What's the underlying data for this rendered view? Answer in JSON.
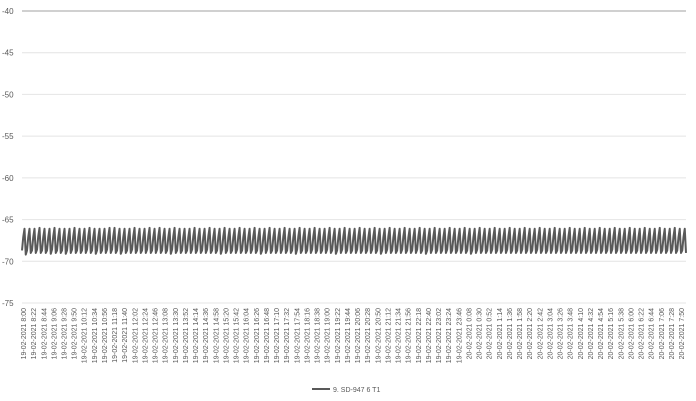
{
  "chart_data": {
    "type": "line",
    "title": "",
    "xlabel": "",
    "ylabel": "",
    "ylim": [
      -75,
      -40
    ],
    "yticks": [
      -40,
      -45,
      -50,
      -55,
      -60,
      -65,
      -70,
      -75
    ],
    "ytick_labels": [
      "-40",
      "-45",
      "-50",
      "-55",
      "-60",
      "-65",
      "-70",
      "-75"
    ],
    "grid": "horizontal",
    "legend_position": "bottom",
    "x_tick_labels": [
      "19-02-2021 8:00",
      "19-02-2021 8:22",
      "19-02-2021 8:44",
      "19-02-2021 9:06",
      "19-02-2021 9:28",
      "19-02-2021 9:50",
      "19-02-2021 10:12",
      "19-02-2021 10:34",
      "19-02-2021 10:56",
      "19-02-2021 11:18",
      "19-02-2021 11:40",
      "19-02-2021 12:02",
      "19-02-2021 12:24",
      "19-02-2021 12:46",
      "19-02-2021 13:08",
      "19-02-2021 13:30",
      "19-02-2021 13:52",
      "19-02-2021 14:14",
      "19-02-2021 14:36",
      "19-02-2021 14:58",
      "19-02-2021 15:20",
      "19-02-2021 15:42",
      "19-02-2021 16:04",
      "19-02-2021 16:26",
      "19-02-2021 16:48",
      "19-02-2021 17:10",
      "19-02-2021 17:32",
      "19-02-2021 17:54",
      "19-02-2021 18:16",
      "19-02-2021 18:38",
      "19-02-2021 19:00",
      "19-02-2021 19:22",
      "19-02-2021 19:44",
      "19-02-2021 20:06",
      "19-02-2021 20:28",
      "19-02-2021 20:50",
      "19-02-2021 21:12",
      "19-02-2021 21:34",
      "19-02-2021 21:56",
      "19-02-2021 22:18",
      "19-02-2021 22:40",
      "19-02-2021 23:02",
      "19-02-2021 23:24",
      "19-02-2021 23:46",
      "20-02-2021 0:08",
      "20-02-2021 0:30",
      "20-02-2021 0:52",
      "20-02-2021 1:14",
      "20-02-2021 1:36",
      "20-02-2021 1:58",
      "20-02-2021 2:20",
      "20-02-2021 2:42",
      "20-02-2021 3:04",
      "20-02-2021 3:26",
      "20-02-2021 3:48",
      "20-02-2021 4:10",
      "20-02-2021 4:32",
      "20-02-2021 4:54",
      "20-02-2021 5:16",
      "20-02-2021 5:38",
      "20-02-2021 6:00",
      "20-02-2021 6:22",
      "20-02-2021 6:44",
      "20-02-2021 7:06",
      "20-02-2021 7:28",
      "20-02-2021 7:50"
    ],
    "series": [
      {
        "name": "9. SD-947 6 T1",
        "color": "#595959",
        "values": [
          -68.7,
          -67.1,
          -66.1,
          -69.2,
          -68.7,
          -67.1,
          -66.1,
          -69.0,
          -68.7,
          -67.1,
          -66.1,
          -69.0,
          -68.6,
          -67.0,
          -66.0,
          -69.0,
          -68.7,
          -67.1,
          -66.1,
          -69.0,
          -68.7,
          -67.1,
          -66.1,
          -69.1,
          -68.6,
          -67.0,
          -66.0,
          -69.0,
          -68.7,
          -67.1,
          -66.1,
          -69.0,
          -68.7,
          -67.1,
          -66.1,
          -69.1,
          -68.7,
          -67.1,
          -66.1,
          -69.0,
          -68.6,
          -67.0,
          -66.0,
          -69.0,
          -68.7,
          -67.1,
          -66.1,
          -69.0,
          -68.7,
          -67.1,
          -66.1,
          -69.0,
          -68.6,
          -67.0,
          -66.0,
          -69.0,
          -68.7,
          -67.1,
          -66.1,
          -69.1,
          -68.7,
          -67.1,
          -66.1,
          -69.0,
          -68.7,
          -67.1,
          -66.1,
          -69.0,
          -68.6,
          -67.0,
          -66.0,
          -69.0,
          -68.6,
          -67.0,
          -66.0,
          -69.0,
          -68.7,
          -67.1,
          -66.1,
          -69.1,
          -68.7,
          -67.1,
          -66.1,
          -69.0,
          -68.7,
          -67.1,
          -66.1,
          -69.0,
          -68.6,
          -67.0,
          -66.0,
          -69.0,
          -68.7,
          -67.1,
          -66.1,
          -69.0,
          -68.7,
          -67.1,
          -66.1,
          -69.0,
          -68.6,
          -67.0,
          -66.0,
          -69.0,
          -68.7,
          -67.1,
          -66.1,
          -69.0,
          -68.6,
          -67.0,
          -66.0,
          -69.0,
          -68.7,
          -67.1,
          -66.1,
          -69.0,
          -68.7,
          -67.1,
          -66.1,
          -69.1,
          -68.6,
          -67.0,
          -66.0,
          -69.0,
          -68.7,
          -67.1,
          -66.1,
          -69.0,
          -68.7,
          -67.1,
          -66.1,
          -69.0,
          -68.7,
          -67.1,
          -66.1,
          -69.0,
          -68.6,
          -67.0,
          -66.0,
          -69.0,
          -68.7,
          -67.1,
          -66.1,
          -69.0,
          -68.7,
          -67.1,
          -66.1,
          -69.0,
          -68.6,
          -67.0,
          -66.0,
          -69.0,
          -68.7,
          -67.1,
          -66.1,
          -69.0,
          -68.7,
          -67.1,
          -66.1,
          -69.1,
          -68.6,
          -67.0,
          -66.0,
          -69.0,
          -68.7,
          -67.1,
          -66.1,
          -69.0,
          -68.7,
          -67.1,
          -66.1,
          -69.0,
          -68.6,
          -67.0,
          -66.0,
          -69.0,
          -68.7,
          -67.1,
          -66.1,
          -69.0,
          -68.7,
          -67.1,
          -66.1,
          -69.0,
          -68.6,
          -67.0,
          -66.0,
          -69.0,
          -68.7,
          -67.1,
          -66.1,
          -69.1,
          -68.7,
          -67.1,
          -66.1,
          -69.0,
          -68.6,
          -67.0,
          -66.0,
          -69.0,
          -68.7,
          -67.1,
          -66.1,
          -69.0,
          -68.7,
          -67.1,
          -66.1,
          -69.0,
          -68.6,
          -67.0,
          -66.0,
          -69.0,
          -68.7,
          -67.1,
          -66.1,
          -69.0,
          -68.7,
          -67.1,
          -66.1,
          -69.1,
          -68.6,
          -67.0,
          -66.0,
          -69.0,
          -68.7,
          -67.1,
          -66.1,
          -69.0,
          -68.7,
          -67.1,
          -66.1,
          -69.0,
          -68.6,
          -67.0,
          -66.0,
          -69.0,
          -68.7,
          -67.1,
          -66.1,
          -69.0,
          -68.7,
          -67.1,
          -66.1,
          -69.0,
          -68.6,
          -67.0,
          -66.0,
          -69.0,
          -68.7,
          -67.1,
          -66.1,
          -69.1,
          -68.7,
          -67.1,
          -66.1,
          -69.0,
          -68.6,
          -67.0,
          -66.0,
          -69.0,
          -68.7,
          -67.1,
          -66.1,
          -69.0,
          -68.7,
          -67.1,
          -66.1,
          -69.0,
          -68.6,
          -67.0,
          -66.0,
          -69.0,
          -68.7,
          -67.1,
          -66.1,
          -69.0,
          -68.7,
          -67.1,
          -66.1,
          -69.0,
          -68.6,
          -67.0,
          -66.0,
          -69.0,
          -68.7,
          -67.1,
          -66.1,
          -69.1,
          -68.7,
          -67.1,
          -66.1,
          -69.0,
          -68.6,
          -67.0,
          -66.0,
          -69.0,
          -68.7,
          -67.1,
          -66.1,
          -69.0,
          -68.7,
          -67.1,
          -66.1,
          -69.0,
          -68.6,
          -67.0,
          -66.0,
          -69.0,
          -68.7,
          -67.1,
          -66.1,
          -69.0,
          -68.7,
          -67.1,
          -66.1,
          -69.0,
          -68.6,
          -67.0,
          -66.0,
          -69.0,
          -68.7,
          -67.1,
          -66.1,
          -69.1,
          -68.7,
          -67.1,
          -66.1,
          -69.0,
          -68.6,
          -67.0,
          -66.0,
          -69.0,
          -68.7,
          -67.1,
          -66.1,
          -69.0,
          -68.7,
          -67.1,
          -66.1,
          -69.0,
          -68.6,
          -67.0,
          -66.0,
          -69.0,
          -68.7,
          -67.1,
          -66.1,
          -69.0,
          -68.7,
          -67.1,
          -66.1,
          -69.0,
          -68.6,
          -67.0,
          -66.0,
          -69.0,
          -68.7,
          -67.1,
          -66.1,
          -69.1,
          -68.7,
          -67.1,
          -66.1,
          -69.0,
          -68.6,
          -67.0,
          -66.0,
          -69.0,
          -68.7,
          -67.1,
          -66.1,
          -69.0,
          -68.7,
          -67.1,
          -66.1,
          -69.0,
          -68.6,
          -67.0,
          -66.0,
          -69.0,
          -68.7,
          -67.1,
          -66.1,
          -69.0,
          -68.7,
          -67.1,
          -66.1,
          -69.0,
          -68.6,
          -67.0,
          -66.0,
          -69.0,
          -68.7,
          -67.1,
          -66.1,
          -69.0,
          -68.7,
          -67.1,
          -66.1,
          -69.0,
          -68.6,
          -67.0,
          -66.0,
          -69.0,
          -68.7,
          -67.1,
          -66.1,
          -69.0,
          -68.7,
          -67.1,
          -66.1,
          -69.0,
          -68.6,
          -67.0,
          -66.0,
          -69.0,
          -68.7,
          -67.1,
          -66.1,
          -69.0,
          -68.7,
          -67.1,
          -66.1,
          -69.0,
          -68.6,
          -67.0,
          -66.0,
          -69.0,
          -68.7,
          -67.1,
          -66.1,
          -69.0,
          -68.7,
          -67.1,
          -66.1,
          -69.0,
          -68.6,
          -67.0,
          -66.0,
          -69.0,
          -68.7,
          -67.1,
          -66.1,
          -69.0,
          -68.7,
          -67.1,
          -66.1,
          -69.0,
          -68.6,
          -67.0,
          -66.0,
          -69.0,
          -68.7,
          -67.1,
          -66.1,
          -69.0,
          -68.7,
          -67.1,
          -66.1,
          -69.0,
          -68.6,
          -67.0,
          -66.0,
          -69.0,
          -68.7,
          -67.1,
          -66.1,
          -69.0,
          -68.7,
          -67.1,
          -66.1,
          -69.0,
          -68.6,
          -67.0,
          -66.0,
          -69.0,
          -68.7,
          -67.1,
          -66.1,
          -69.0,
          -68.7,
          -67.1,
          -66.1,
          -69.0,
          -68.6,
          -67.0,
          -66.0,
          -69.0,
          -68.7,
          -67.1,
          -66.1,
          -69.0,
          -68.7,
          -67.1,
          -66.1,
          -69.0,
          -68.6,
          -67.0,
          -66.0,
          -69.0,
          -68.7,
          -67.1,
          -66.1,
          -69.0,
          -68.7,
          -67.1,
          -66.1,
          -69.0,
          -68.6,
          -67.0,
          -66.0,
          -69.0,
          -68.7,
          -67.1,
          -66.1,
          -69.0,
          -68.7,
          -67.1,
          -66.1,
          -69.0,
          -68.6,
          -67.0,
          -66.0,
          -69.0,
          -68.7,
          -67.1,
          -66.1,
          -69.0,
          -68.7,
          -67.1,
          -66.1,
          -69.0
        ]
      }
    ]
  }
}
